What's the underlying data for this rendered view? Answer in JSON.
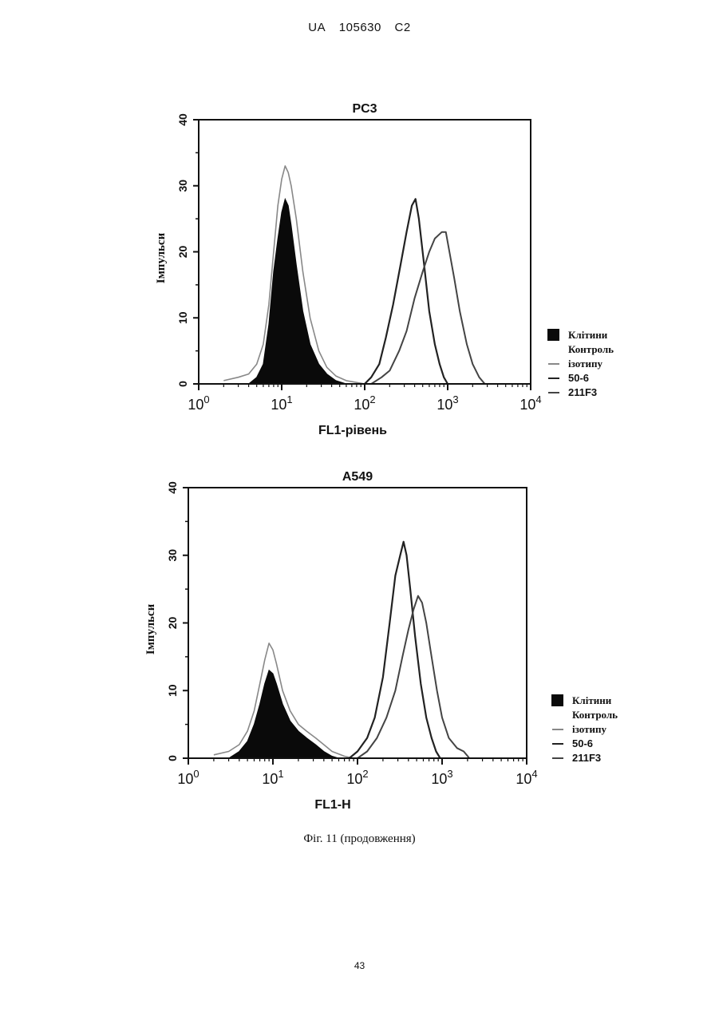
{
  "header": {
    "country": "UA",
    "number": "105630",
    "kind": "C2"
  },
  "page_number": "43",
  "caption": "Фіг. 11 (продовження)",
  "colors": {
    "filled": "#0a0a0a",
    "control": "#888888",
    "line_a": "#222222",
    "line_b": "#444444"
  },
  "legend": [
    "Клітини",
    "Контроль",
    "ізотипу",
    "50-6",
    "211F3"
  ],
  "chart_data": [
    {
      "type": "line",
      "title": "PC3",
      "xlabel": "FL1-рівень",
      "ylabel": "Імпульси",
      "xscale": "log",
      "xlim": [
        1,
        10000
      ],
      "ylim": [
        0,
        40
      ],
      "xticks": [
        "0",
        "1",
        "2",
        "3",
        "4"
      ],
      "yticks": [
        0,
        10,
        20,
        30,
        40
      ],
      "series": [
        {
          "kind": "filled",
          "points": [
            [
              4,
              0
            ],
            [
              5,
              1
            ],
            [
              6,
              3
            ],
            [
              7,
              9
            ],
            [
              8,
              17
            ],
            [
              9,
              22
            ],
            [
              10,
              26
            ],
            [
              11,
              28
            ],
            [
              12,
              27
            ],
            [
              13,
              24
            ],
            [
              15,
              18
            ],
            [
              18,
              11
            ],
            [
              22,
              6
            ],
            [
              28,
              3
            ],
            [
              35,
              1.5
            ],
            [
              45,
              0.5
            ],
            [
              60,
              0
            ]
          ]
        },
        {
          "kind": "control",
          "points": [
            [
              2,
              0.5
            ],
            [
              3,
              1
            ],
            [
              4,
              1.5
            ],
            [
              5,
              3
            ],
            [
              6,
              6
            ],
            [
              7,
              12
            ],
            [
              8,
              20
            ],
            [
              9,
              27
            ],
            [
              10,
              31
            ],
            [
              11,
              33
            ],
            [
              12,
              32
            ],
            [
              13,
              30
            ],
            [
              15,
              25
            ],
            [
              18,
              17
            ],
            [
              22,
              10
            ],
            [
              28,
              5
            ],
            [
              35,
              2.5
            ],
            [
              45,
              1.2
            ],
            [
              60,
              0.5
            ],
            [
              100,
              0
            ]
          ]
        },
        {
          "kind": "line_a",
          "points": [
            [
              100,
              0
            ],
            [
              120,
              1
            ],
            [
              150,
              3
            ],
            [
              180,
              7
            ],
            [
              220,
              12
            ],
            [
              270,
              18
            ],
            [
              320,
              23
            ],
            [
              370,
              27
            ],
            [
              410,
              28
            ],
            [
              450,
              25
            ],
            [
              520,
              18
            ],
            [
              600,
              11
            ],
            [
              700,
              6
            ],
            [
              800,
              3
            ],
            [
              900,
              1
            ],
            [
              1000,
              0
            ]
          ]
        },
        {
          "kind": "line_b",
          "points": [
            [
              120,
              0
            ],
            [
              160,
              1
            ],
            [
              200,
              2
            ],
            [
              260,
              5
            ],
            [
              320,
              8
            ],
            [
              400,
              13
            ],
            [
              500,
              17
            ],
            [
              600,
              20
            ],
            [
              700,
              22
            ],
            [
              850,
              23
            ],
            [
              950,
              23
            ],
            [
              1050,
              20
            ],
            [
              1200,
              16
            ],
            [
              1400,
              11
            ],
            [
              1700,
              6
            ],
            [
              2000,
              3
            ],
            [
              2400,
              1
            ],
            [
              2800,
              0
            ]
          ]
        }
      ]
    },
    {
      "type": "line",
      "title": "A549",
      "xlabel": "FL1-H",
      "ylabel": "Імпульси",
      "xscale": "log",
      "xlim": [
        1,
        10000
      ],
      "ylim": [
        0,
        40
      ],
      "xticks": [
        "0",
        "1",
        "2",
        "3",
        "4"
      ],
      "yticks": [
        0,
        10,
        20,
        30,
        40
      ],
      "series": [
        {
          "kind": "filled",
          "points": [
            [
              3,
              0
            ],
            [
              4,
              1
            ],
            [
              5,
              2.5
            ],
            [
              6,
              5
            ],
            [
              7,
              8
            ],
            [
              8,
              11
            ],
            [
              9,
              13
            ],
            [
              10,
              12.5
            ],
            [
              11,
              11
            ],
            [
              13,
              8
            ],
            [
              16,
              5.5
            ],
            [
              20,
              4
            ],
            [
              25,
              3
            ],
            [
              32,
              2
            ],
            [
              40,
              1
            ],
            [
              50,
              0.3
            ],
            [
              60,
              0
            ]
          ]
        },
        {
          "kind": "control",
          "points": [
            [
              2,
              0.5
            ],
            [
              3,
              1
            ],
            [
              4,
              2
            ],
            [
              5,
              4
            ],
            [
              6,
              7
            ],
            [
              7,
              11
            ],
            [
              8,
              14.5
            ],
            [
              9,
              17
            ],
            [
              10,
              16
            ],
            [
              11,
              14
            ],
            [
              13,
              10
            ],
            [
              16,
              7
            ],
            [
              20,
              5
            ],
            [
              25,
              4
            ],
            [
              32,
              3
            ],
            [
              40,
              2
            ],
            [
              50,
              1
            ],
            [
              70,
              0.3
            ],
            [
              90,
              0
            ]
          ]
        },
        {
          "kind": "line_a",
          "points": [
            [
              80,
              0
            ],
            [
              100,
              1
            ],
            [
              130,
              3
            ],
            [
              160,
              6
            ],
            [
              200,
              12
            ],
            [
              240,
              20
            ],
            [
              280,
              27
            ],
            [
              320,
              30
            ],
            [
              350,
              32
            ],
            [
              380,
              30
            ],
            [
              420,
              25
            ],
            [
              480,
              18
            ],
            [
              560,
              11
            ],
            [
              650,
              6
            ],
            [
              750,
              3
            ],
            [
              850,
              1
            ],
            [
              950,
              0
            ]
          ]
        },
        {
          "kind": "line_b",
          "points": [
            [
              100,
              0
            ],
            [
              130,
              1
            ],
            [
              170,
              3
            ],
            [
              220,
              6
            ],
            [
              280,
              10
            ],
            [
              340,
              15
            ],
            [
              400,
              19
            ],
            [
              460,
              22
            ],
            [
              520,
              24
            ],
            [
              580,
              23
            ],
            [
              650,
              20
            ],
            [
              750,
              15
            ],
            [
              870,
              10
            ],
            [
              1000,
              6
            ],
            [
              1200,
              3
            ],
            [
              1500,
              1.5
            ],
            [
              1800,
              1
            ],
            [
              2100,
              0
            ]
          ]
        }
      ]
    }
  ]
}
